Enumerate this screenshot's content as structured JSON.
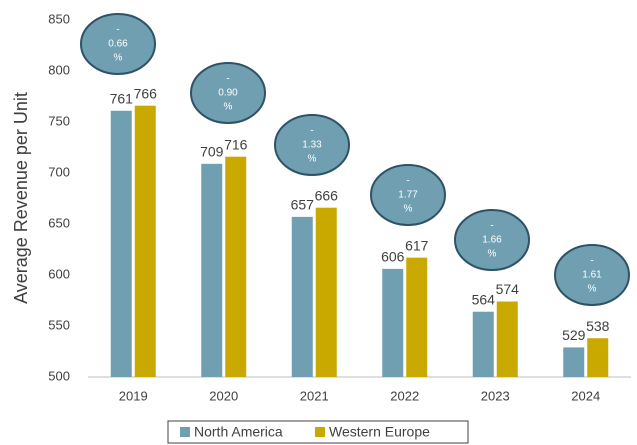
{
  "chart_data": {
    "type": "bar",
    "y_label": "Average Revenue per Unit",
    "categories": [
      "2019",
      "2020",
      "2021",
      "2022",
      "2023",
      "2024"
    ],
    "series": [
      {
        "name": "North America",
        "color": "#6f9fb0",
        "values": [
          761,
          709,
          657,
          606,
          564,
          529
        ]
      },
      {
        "name": "Western Europe",
        "color": "#c9a800",
        "values": [
          766,
          716,
          666,
          617,
          574,
          538
        ]
      }
    ],
    "annotations": [
      [
        "-",
        "0.66",
        "%"
      ],
      [
        "-",
        "0.90",
        "%"
      ],
      [
        "-",
        "1.33",
        "%"
      ],
      [
        "-",
        "1.77",
        "%"
      ],
      [
        "-",
        "1.66",
        "%"
      ],
      [
        "-",
        "1.61",
        "%"
      ]
    ],
    "ylim": [
      500,
      850
    ],
    "yticks": [
      500,
      550,
      600,
      650,
      700,
      750,
      800,
      850
    ],
    "grid": false,
    "legend": "bottom"
  }
}
